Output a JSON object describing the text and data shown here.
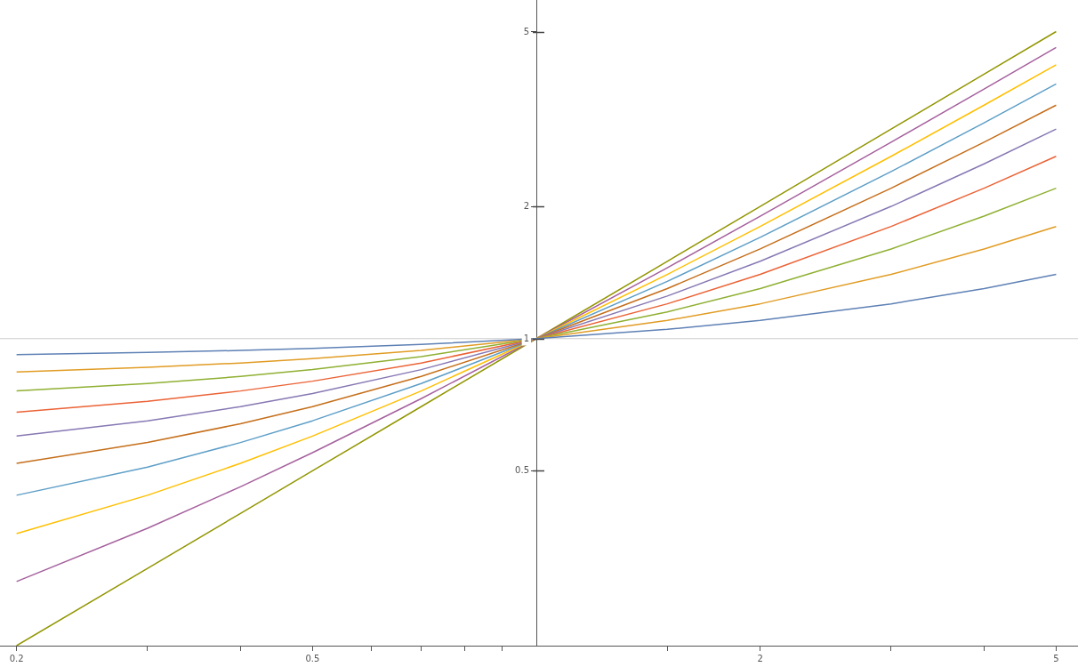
{
  "chart_data": {
    "type": "line",
    "log": "xy",
    "grid": false,
    "legend": false,
    "marker": "none",
    "line_style": "solid",
    "x": [
      0.2,
      0.3,
      0.4,
      0.5,
      0.7,
      1,
      1.5,
      2,
      3,
      4,
      5
    ],
    "xlim": [
      0.19,
      5.35
    ],
    "ylim": [
      0.2,
      5.9
    ],
    "xticks": [
      0.2,
      {
        "value": 0.3,
        "label": null
      },
      {
        "value": 0.4,
        "label": null
      },
      0.5,
      {
        "value": 0.6,
        "label": null
      },
      {
        "value": 0.7,
        "label": null
      },
      {
        "value": 0.8,
        "label": null
      },
      {
        "value": 0.9,
        "label": null
      },
      {
        "value": 1.5,
        "label": null
      },
      2,
      {
        "value": 3,
        "label": null
      },
      {
        "value": 4,
        "label": null
      },
      5
    ],
    "yticks": [
      0.5,
      1,
      2,
      5
    ],
    "ref_lines": [
      {
        "axis": "y",
        "value": 1,
        "color": "#cccccc"
      }
    ],
    "series": [
      {
        "color": "#5e81b5",
        "values": [
          0.92,
          0.93,
          0.94,
          0.95,
          0.97,
          1,
          1.05,
          1.1,
          1.2,
          1.3,
          1.4
        ]
      },
      {
        "color": "#e19c24",
        "values": [
          0.84,
          0.86,
          0.88,
          0.9,
          0.94,
          1,
          1.1,
          1.2,
          1.4,
          1.6,
          1.8
        ]
      },
      {
        "color": "#8fb032",
        "values": [
          0.76,
          0.79,
          0.82,
          0.85,
          0.91,
          1,
          1.15,
          1.3,
          1.6,
          1.9,
          2.2
        ]
      },
      {
        "color": "#eb6235",
        "values": [
          0.68,
          0.72,
          0.76,
          0.8,
          0.88,
          1,
          1.2,
          1.4,
          1.8,
          2.2,
          2.6
        ]
      },
      {
        "color": "#8778b3",
        "values": [
          0.6,
          0.65,
          0.7,
          0.75,
          0.85,
          1,
          1.25,
          1.5,
          2,
          2.5,
          3
        ]
      },
      {
        "color": "#c56e1a",
        "values": [
          0.52,
          0.58,
          0.64,
          0.7,
          0.82,
          1,
          1.3,
          1.6,
          2.2,
          2.8,
          3.4
        ]
      },
      {
        "color": "#5d9ec7",
        "values": [
          0.44,
          0.51,
          0.58,
          0.65,
          0.79,
          1,
          1.35,
          1.7,
          2.4,
          3.1,
          3.8
        ]
      },
      {
        "color": "#ffbf00",
        "values": [
          0.36,
          0.44,
          0.52,
          0.6,
          0.76,
          1,
          1.4,
          1.8,
          2.6,
          3.4,
          4.2
        ]
      },
      {
        "color": "#a5609d",
        "values": [
          0.28,
          0.37,
          0.46,
          0.55,
          0.73,
          1,
          1.45,
          1.9,
          2.8,
          3.7,
          4.6
        ]
      },
      {
        "color": "#929600",
        "values": [
          0.2,
          0.3,
          0.4,
          0.5,
          0.7,
          1,
          1.5,
          2,
          3,
          4,
          5
        ]
      }
    ]
  }
}
